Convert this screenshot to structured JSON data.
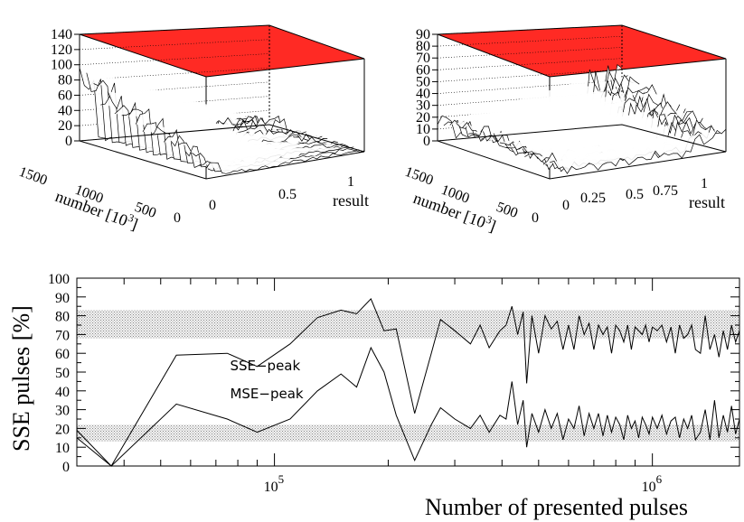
{
  "chart_data": [
    {
      "type": "surface3d",
      "panel": "left",
      "xlabel": "number [10",
      "xlabel_sup": "3",
      "xlabel_close": "]",
      "ylabel": "result",
      "z_ticks": [
        "0",
        "20",
        "40",
        "60",
        "80",
        "100",
        "120",
        "140"
      ],
      "z_range": [
        0,
        140
      ],
      "number_ticks": [
        "1500",
        "1000",
        "500",
        "0"
      ],
      "result_ticks": [
        "0",
        "0.5",
        "1"
      ],
      "result_range": [
        0,
        1
      ],
      "colors": {
        "top_plane": "#ff2a24",
        "band_green": "#33cc33",
        "band_blue": "#8fa8ff"
      }
    },
    {
      "type": "surface3d",
      "panel": "right",
      "xlabel": "number [10",
      "xlabel_sup": "3",
      "xlabel_close": "]",
      "ylabel": "result",
      "z_ticks": [
        "0",
        "10",
        "20",
        "30",
        "40",
        "50",
        "60",
        "70",
        "80",
        "90"
      ],
      "z_range": [
        0,
        90
      ],
      "number_ticks": [
        "1500",
        "1000",
        "500",
        "0"
      ],
      "result_ticks": [
        "0",
        "0.25",
        "0.5",
        "0.75",
        "1"
      ],
      "result_range": [
        0,
        1
      ],
      "colors": {
        "top_plane": "#ff2a24",
        "band_green": "#33cc33",
        "band_blue": "#8fa8ff"
      }
    },
    {
      "type": "line",
      "panel": "bottom",
      "xlabel": "Number of presented pulses",
      "ylabel": "SSE pulses  [%]",
      "x_scale": "log",
      "xlim": [
        30000,
        1700000
      ],
      "ylim": [
        0,
        100
      ],
      "y_ticks": [
        "0",
        "10",
        "20",
        "30",
        "40",
        "50",
        "60",
        "70",
        "80",
        "90",
        "100"
      ],
      "x_tick_labels": [
        {
          "base": "10",
          "exp": "5",
          "value": 100000
        },
        {
          "base": "10",
          "exp": "6",
          "value": 1000000
        }
      ],
      "bands": [
        {
          "from": 68,
          "to": 83
        },
        {
          "from": 13,
          "to": 22
        }
      ],
      "annotations": [
        {
          "text": "SSE−peak",
          "x": 90000,
          "y": 51
        },
        {
          "text": "MSE−peak",
          "x": 90000,
          "y": 36
        }
      ],
      "series": [
        {
          "x": [
            30000,
            37000,
            55000,
            75000,
            90000,
            110000,
            130000,
            150000,
            165000,
            180000,
            195000,
            210000,
            235000,
            260000,
            275000,
            300000,
            330000,
            350000,
            370000,
            395000,
            410000,
            425000,
            440000,
            455000,
            465000,
            480000,
            500000,
            520000,
            540000,
            560000,
            580000,
            600000,
            620000,
            640000,
            660000,
            680000,
            700000,
            720000,
            740000,
            760000,
            780000,
            800000,
            820000,
            840000,
            860000,
            880000,
            900000,
            920000,
            940000,
            960000,
            980000,
            1000000,
            1030000,
            1060000,
            1090000,
            1120000,
            1150000,
            1180000,
            1210000,
            1240000,
            1270000,
            1300000,
            1340000,
            1380000,
            1420000,
            1460000,
            1500000,
            1540000,
            1580000,
            1620000,
            1660000,
            1700000
          ],
          "values": [
            15,
            0,
            59,
            60,
            53,
            65,
            79,
            83,
            81,
            89,
            72,
            73,
            28,
            60,
            78,
            72,
            65,
            75,
            63,
            72,
            75,
            85,
            70,
            82,
            44,
            80,
            60,
            80,
            73,
            77,
            62,
            75,
            62,
            80,
            70,
            76,
            62,
            75,
            70,
            74,
            60,
            75,
            72,
            66,
            75,
            62,
            74,
            72,
            70,
            75,
            66,
            74,
            72,
            75,
            66,
            74,
            60,
            75,
            68,
            70,
            75,
            62,
            60,
            80,
            62,
            70,
            58,
            72,
            62,
            75,
            66,
            72
          ]
        },
        {
          "x": [
            30000,
            37000,
            55000,
            75000,
            90000,
            110000,
            130000,
            150000,
            165000,
            180000,
            195000,
            210000,
            235000,
            260000,
            275000,
            300000,
            330000,
            350000,
            370000,
            395000,
            410000,
            425000,
            440000,
            455000,
            465000,
            480000,
            500000,
            520000,
            540000,
            560000,
            580000,
            600000,
            620000,
            640000,
            660000,
            680000,
            700000,
            720000,
            740000,
            760000,
            780000,
            800000,
            820000,
            840000,
            860000,
            880000,
            900000,
            920000,
            940000,
            960000,
            980000,
            1000000,
            1030000,
            1060000,
            1090000,
            1120000,
            1150000,
            1180000,
            1210000,
            1240000,
            1270000,
            1300000,
            1340000,
            1380000,
            1420000,
            1460000,
            1500000,
            1540000,
            1580000,
            1620000,
            1660000,
            1700000
          ],
          "values": [
            19,
            0,
            33,
            25,
            18,
            25,
            40,
            49,
            42,
            63,
            50,
            27,
            3,
            22,
            31,
            25,
            20,
            27,
            18,
            27,
            25,
            45,
            22,
            35,
            10,
            28,
            18,
            30,
            20,
            28,
            14,
            25,
            20,
            32,
            16,
            28,
            20,
            28,
            16,
            27,
            18,
            26,
            22,
            14,
            27,
            20,
            24,
            15,
            26,
            22,
            17,
            26,
            20,
            27,
            17,
            24,
            26,
            15,
            25,
            20,
            27,
            14,
            18,
            30,
            14,
            35,
            15,
            27,
            18,
            32,
            17,
            25
          ]
        }
      ]
    }
  ]
}
